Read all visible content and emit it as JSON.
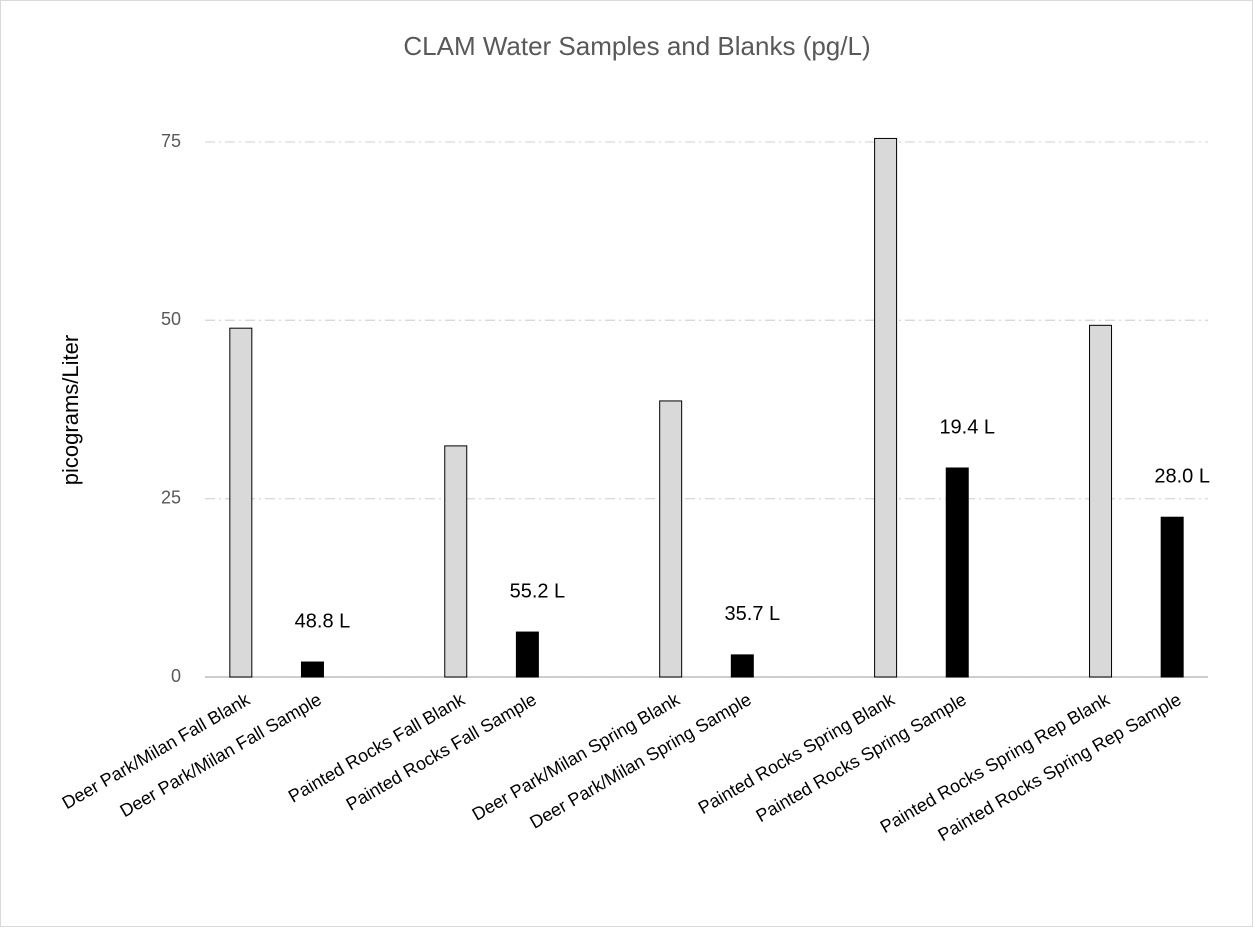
{
  "chart_data": {
    "type": "bar",
    "title": "CLAM Water Samples and Blanks (pg/L)",
    "y_label": "picograms/Liter",
    "categories": [
      "Deer Park/Milan Fall Blank",
      "Deer Park/Milan Fall Sample",
      null,
      "Painted Rocks Fall Blank",
      "Painted Rocks Fall Sample",
      null,
      "Deer Park/Milan Spring Blank",
      "Deer Park/Milan Spring Sample",
      null,
      "Painted Rocks Spring Blank",
      "Painted Rocks Spring Sample",
      null,
      "Painted Rocks Spring Rep Blank",
      "Painted Rocks Spring Rep Sample"
    ],
    "values": [
      48.9,
      2.1,
      null,
      32.4,
      6.3,
      null,
      38.7,
      3.1,
      null,
      75.5,
      29.3,
      null,
      49.3,
      22.4
    ],
    "colors": [
      "#d9d9d9",
      "#000000",
      null,
      "#d9d9d9",
      "#000000",
      null,
      "#d9d9d9",
      "#000000",
      null,
      "#d9d9d9",
      "#000000",
      null,
      "#d9d9d9",
      "#000000"
    ],
    "annotations": [
      null,
      "48.8 L",
      null,
      null,
      "55.2 L",
      null,
      null,
      "35.7 L",
      null,
      null,
      "19.4 L",
      null,
      null,
      "28.0 L"
    ],
    "ylim": [
      0,
      75
    ],
    "yticks": [
      0,
      25,
      50,
      75
    ],
    "grid": true
  }
}
